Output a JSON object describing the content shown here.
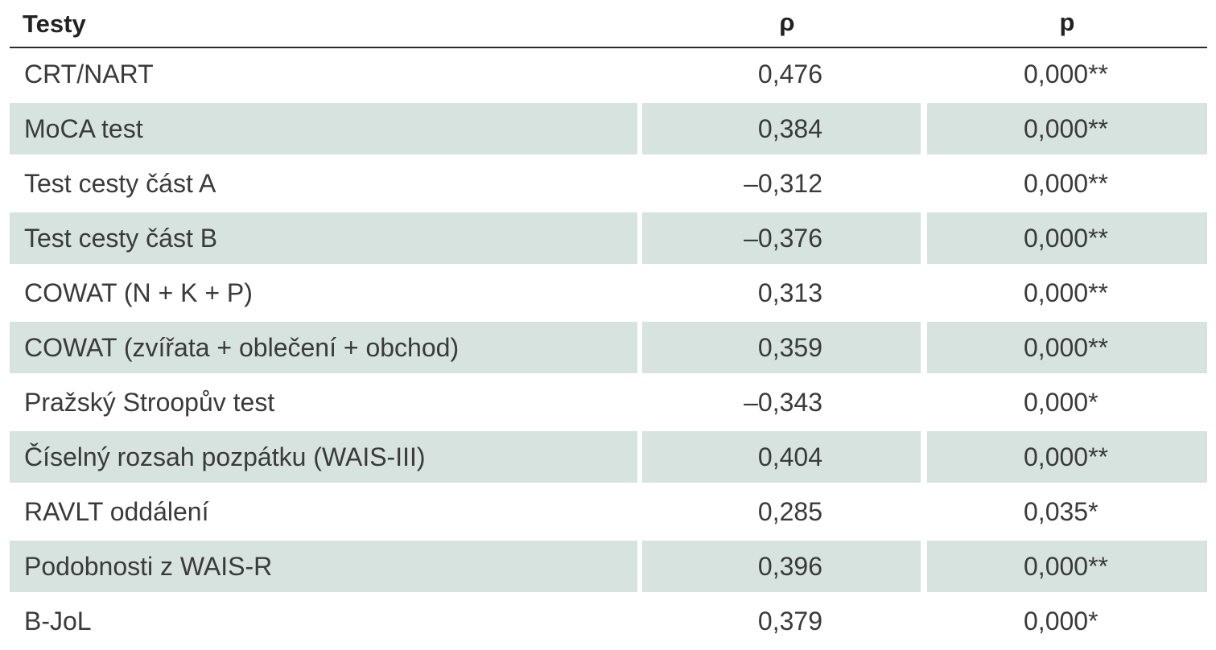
{
  "headers": {
    "test": "Testy",
    "rho": "ρ",
    "p": "p"
  },
  "rows": [
    {
      "name": "CRT/NART",
      "rho": "0,476",
      "p": "0,000**"
    },
    {
      "name": "MoCA test",
      "rho": "0,384",
      "p": "0,000**"
    },
    {
      "name": "Test cesty část A",
      "rho": "–0,312",
      "p": "0,000**"
    },
    {
      "name": "Test cesty část B",
      "rho": "–0,376",
      "p": "0,000**"
    },
    {
      "name": "COWAT (N + K + P)",
      "rho": "0,313",
      "p": "0,000**"
    },
    {
      "name": "COWAT (zvířata + oblečení + obchod)",
      "rho": "0,359",
      "p": "0,000**"
    },
    {
      "name": "Pražský Stroopův test",
      "rho": "–0,343",
      "p": "0,000*"
    },
    {
      "name": "Číselný rozsah pozpátku (WAIS-III)",
      "rho": "0,404",
      "p": "0,000**"
    },
    {
      "name": "RAVLT oddálení",
      "rho": "0,285",
      "p": "0,035*"
    },
    {
      "name": "Podobnosti z WAIS-R",
      "rho": "0,396",
      "p": "0,000**"
    },
    {
      "name": "B-JoL",
      "rho": "0,379",
      "p": "0,000*"
    }
  ],
  "colors": {
    "shaded_row": "#d7e3df",
    "text": "#3a3a3a",
    "header_rule": "#2b2b2b"
  }
}
